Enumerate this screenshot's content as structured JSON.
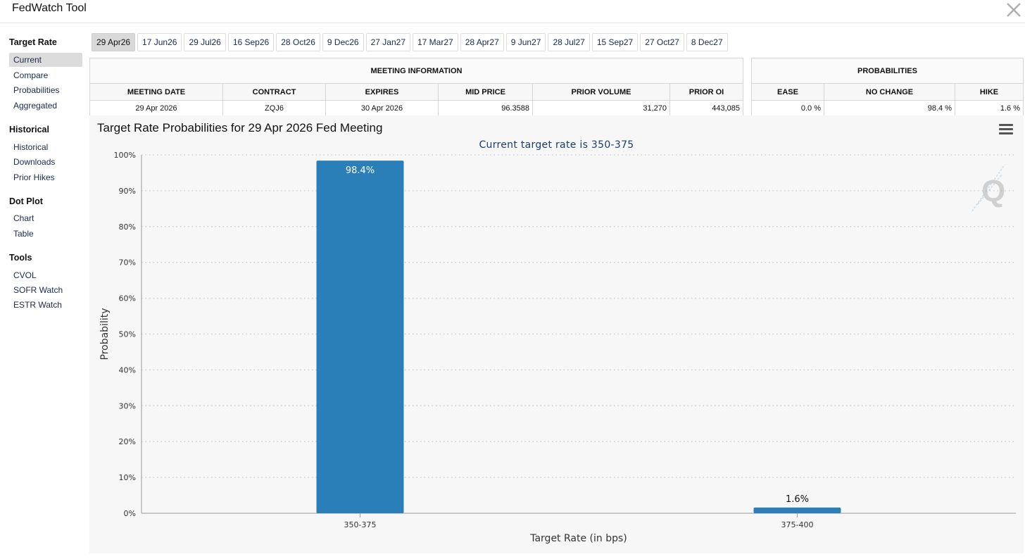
{
  "app": {
    "title": "FedWatch Tool",
    "close_icon": "x-close-icon"
  },
  "sidebar": {
    "sections": [
      {
        "heading": "Target Rate",
        "items": [
          "Current",
          "Compare",
          "Probabilities",
          "Aggregated"
        ]
      },
      {
        "heading": "Historical",
        "items": [
          "Historical",
          "Downloads",
          "Prior Hikes"
        ]
      },
      {
        "heading": "Dot Plot",
        "items": [
          "Chart",
          "Table"
        ]
      },
      {
        "heading": "Tools",
        "items": [
          "CVOL",
          "SOFR Watch",
          "ESTR Watch"
        ]
      }
    ],
    "active_item": "Current"
  },
  "tabs": [
    "29 Apr26",
    "17 Jun26",
    "29 Jul26",
    "16 Sep26",
    "28 Oct26",
    "9 Dec26",
    "27 Jan27",
    "17 Mar27",
    "28 Apr27",
    "9 Jun27",
    "28 Jul27",
    "15 Sep27",
    "27 Oct27",
    "8 Dec27"
  ],
  "active_tab": "29 Apr26",
  "meeting_info": {
    "group_title": "MEETING INFORMATION",
    "headers": [
      "MEETING DATE",
      "CONTRACT",
      "EXPIRES",
      "MID PRICE",
      "PRIOR VOLUME",
      "PRIOR OI"
    ],
    "row": [
      "29 Apr 2026",
      "ZQJ6",
      "30 Apr 2026",
      "96.3588",
      "31,270",
      "443,085"
    ]
  },
  "probabilities": {
    "group_title": "PROBABILITIES",
    "headers": [
      "EASE",
      "NO CHANGE",
      "HIKE"
    ],
    "row": [
      "0.0 %",
      "98.4 %",
      "1.6 %"
    ]
  },
  "chart_panel": {
    "title": "Target Rate Probabilities for 29 Apr 2026 Fed Meeting",
    "menu_icon": "hamburger-menu-icon",
    "watermark_icon": "quikstrike-q-logo-icon"
  },
  "chart_data": {
    "type": "bar",
    "title": "Current target rate is 350-375",
    "categories": [
      "350-375",
      "375-400"
    ],
    "values": [
      98.4,
      1.6
    ],
    "value_labels": [
      "98.4%",
      "1.6%"
    ],
    "xlabel": "Target Rate (in bps)",
    "ylabel": "Probability",
    "ylim": [
      0,
      100
    ],
    "yticks": [
      "0%",
      "10%",
      "20%",
      "30%",
      "40%",
      "50%",
      "60%",
      "70%",
      "80%",
      "90%",
      "100%"
    ],
    "grid": true,
    "bar_color": "#2b7fb8"
  }
}
